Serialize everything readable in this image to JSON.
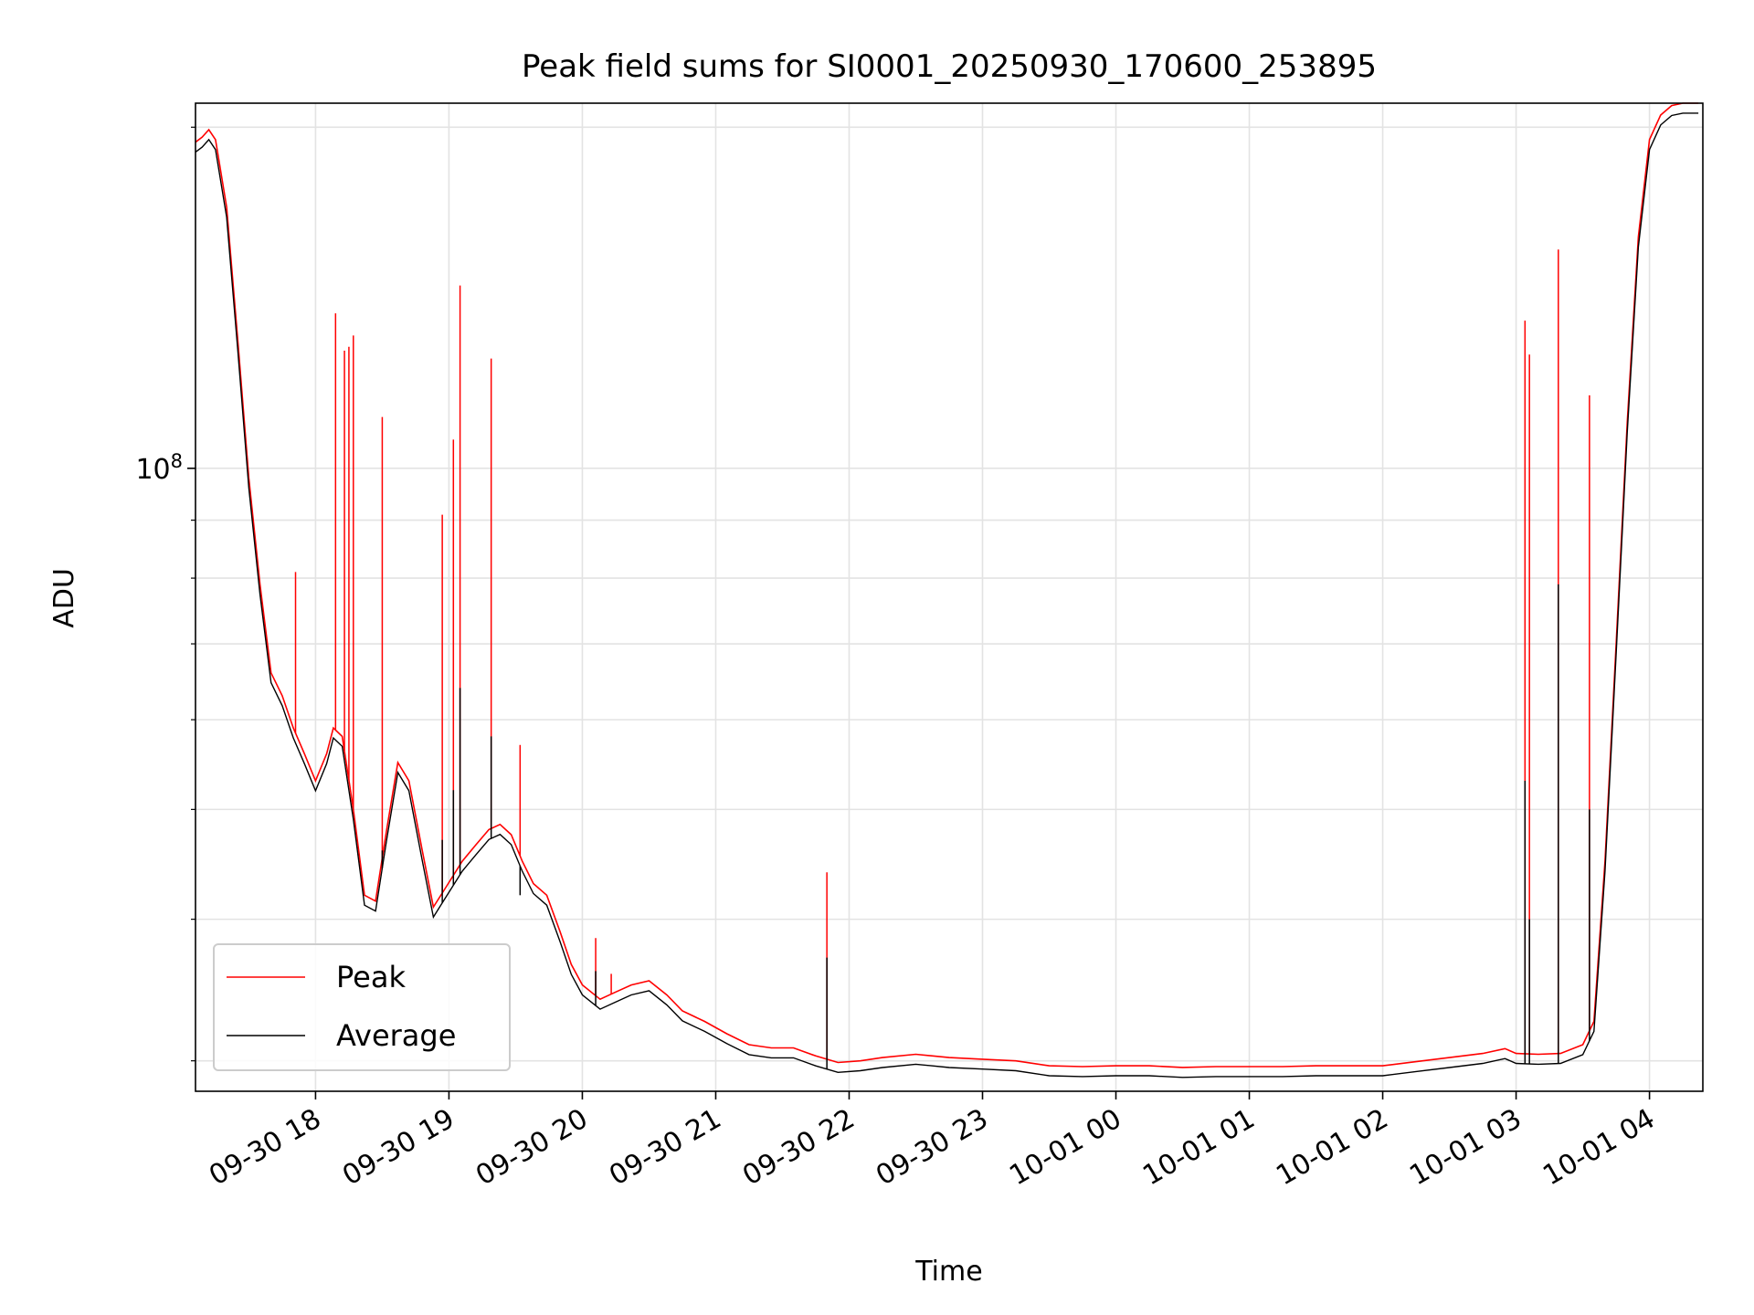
{
  "chart_data": {
    "type": "line",
    "title": "Peak field sums for SI0001_20250930_170600_253895",
    "xlabel": "Time",
    "ylabel": "ADU",
    "yscale": "log",
    "x_range": [
      "2025-09-30 17:06",
      "2025-10-01 04:24"
    ],
    "ylim": [
      28200000,
      210000000
    ],
    "x_tick_labels": [
      "09-30 18",
      "09-30 19",
      "09-30 20",
      "09-30 21",
      "09-30 22",
      "09-30 23",
      "10-01 00",
      "10-01 01",
      "10-01 02",
      "10-01 03",
      "10-01 04"
    ],
    "x_tick_values": [
      "2025-09-30 18:00",
      "2025-09-30 19:00",
      "2025-09-30 20:00",
      "2025-09-30 21:00",
      "2025-09-30 22:00",
      "2025-09-30 23:00",
      "2025-10-01 00:00",
      "2025-10-01 01:00",
      "2025-10-01 02:00",
      "2025-10-01 03:00",
      "2025-10-01 04:00"
    ],
    "y_tick_label": "10^8",
    "y_major_tick_value": 100000000,
    "y_minor_tick_values": [
      30000000,
      40000000,
      50000000,
      60000000,
      70000000,
      80000000,
      90000000,
      200000000
    ],
    "grid": true,
    "legend_position": "lower-left",
    "series": [
      {
        "name": "Peak",
        "color": "#ff0000",
        "baseline": [
          [
            "2025-09-30 17:06",
            194000000
          ],
          [
            "2025-09-30 17:09",
            196000000
          ],
          [
            "2025-09-30 17:12",
            199000000
          ],
          [
            "2025-09-30 17:15",
            195000000
          ],
          [
            "2025-09-30 17:20",
            170000000
          ],
          [
            "2025-09-30 17:25",
            130000000
          ],
          [
            "2025-09-30 17:30",
            98000000
          ],
          [
            "2025-09-30 17:35",
            79000000
          ],
          [
            "2025-09-30 17:40",
            66000000
          ],
          [
            "2025-09-30 17:45",
            63000000
          ],
          [
            "2025-09-30 17:50",
            59000000
          ],
          [
            "2025-09-30 17:55",
            56000000
          ],
          [
            "2025-09-30 18:00",
            53000000
          ],
          [
            "2025-09-30 18:05",
            56000000
          ],
          [
            "2025-09-30 18:08",
            59000000
          ],
          [
            "2025-09-30 18:12",
            58000000
          ],
          [
            "2025-09-30 18:17",
            50000000
          ],
          [
            "2025-09-30 18:22",
            42000000
          ],
          [
            "2025-09-30 18:27",
            41500000
          ],
          [
            "2025-09-30 18:32",
            48000000
          ],
          [
            "2025-09-30 18:37",
            55000000
          ],
          [
            "2025-09-30 18:42",
            53000000
          ],
          [
            "2025-09-30 18:48",
            46000000
          ],
          [
            "2025-09-30 18:53",
            41000000
          ],
          [
            "2025-09-30 18:58",
            42500000
          ],
          [
            "2025-09-30 19:06",
            45000000
          ],
          [
            "2025-09-30 19:12",
            46500000
          ],
          [
            "2025-09-30 19:18",
            48000000
          ],
          [
            "2025-09-30 19:23",
            48500000
          ],
          [
            "2025-09-30 19:28",
            47500000
          ],
          [
            "2025-09-30 19:33",
            45000000
          ],
          [
            "2025-09-30 19:38",
            43000000
          ],
          [
            "2025-09-30 19:44",
            42000000
          ],
          [
            "2025-09-30 19:50",
            39000000
          ],
          [
            "2025-09-30 19:55",
            36500000
          ],
          [
            "2025-09-30 20:00",
            35000000
          ],
          [
            "2025-09-30 20:08",
            34000000
          ],
          [
            "2025-09-30 20:15",
            34500000
          ],
          [
            "2025-09-30 20:22",
            35000000
          ],
          [
            "2025-09-30 20:30",
            35300000
          ],
          [
            "2025-09-30 20:38",
            34300000
          ],
          [
            "2025-09-30 20:45",
            33200000
          ],
          [
            "2025-09-30 20:55",
            32500000
          ],
          [
            "2025-09-30 21:05",
            31700000
          ],
          [
            "2025-09-30 21:15",
            31000000
          ],
          [
            "2025-09-30 21:25",
            30800000
          ],
          [
            "2025-09-30 21:35",
            30800000
          ],
          [
            "2025-09-30 21:45",
            30300000
          ],
          [
            "2025-09-30 21:55",
            29900000
          ],
          [
            "2025-09-30 22:05",
            30000000
          ],
          [
            "2025-09-30 22:15",
            30200000
          ],
          [
            "2025-09-30 22:30",
            30400000
          ],
          [
            "2025-09-30 22:45",
            30200000
          ],
          [
            "2025-09-30 23:00",
            30100000
          ],
          [
            "2025-09-30 23:15",
            30000000
          ],
          [
            "2025-09-30 23:30",
            29700000
          ],
          [
            "2025-09-30 23:45",
            29650000
          ],
          [
            "2025-10-01 00:00",
            29700000
          ],
          [
            "2025-10-01 00:15",
            29700000
          ],
          [
            "2025-10-01 00:30",
            29600000
          ],
          [
            "2025-10-01 00:45",
            29650000
          ],
          [
            "2025-10-01 01:00",
            29650000
          ],
          [
            "2025-10-01 01:15",
            29650000
          ],
          [
            "2025-10-01 01:30",
            29700000
          ],
          [
            "2025-10-01 01:45",
            29700000
          ],
          [
            "2025-10-01 02:00",
            29700000
          ],
          [
            "2025-10-01 02:15",
            29950000
          ],
          [
            "2025-10-01 02:30",
            30200000
          ],
          [
            "2025-10-01 02:45",
            30450000
          ],
          [
            "2025-10-01 02:55",
            30750000
          ],
          [
            "2025-10-01 03:00",
            30450000
          ],
          [
            "2025-10-01 03:10",
            30400000
          ],
          [
            "2025-10-01 03:20",
            30450000
          ],
          [
            "2025-10-01 03:30",
            31000000
          ],
          [
            "2025-10-01 03:35",
            32500000
          ],
          [
            "2025-10-01 03:40",
            45000000
          ],
          [
            "2025-10-01 03:45",
            70000000
          ],
          [
            "2025-10-01 03:50",
            110000000
          ],
          [
            "2025-10-01 03:55",
            160000000
          ],
          [
            "2025-10-01 04:00",
            195000000
          ],
          [
            "2025-10-01 04:05",
            205000000
          ],
          [
            "2025-10-01 04:10",
            209000000
          ],
          [
            "2025-10-01 04:15",
            210000000
          ],
          [
            "2025-10-01 04:22",
            210000000
          ]
        ],
        "spikes": [
          [
            "2025-09-30 17:51",
            81000000
          ],
          [
            "2025-09-30 18:09",
            137000000
          ],
          [
            "2025-09-30 18:13",
            127000000
          ],
          [
            "2025-09-30 18:15",
            128000000
          ],
          [
            "2025-09-30 18:17",
            131000000
          ],
          [
            "2025-09-30 18:30",
            111000000
          ],
          [
            "2025-09-30 18:57",
            91000000
          ],
          [
            "2025-09-30 19:02",
            106000000
          ],
          [
            "2025-09-30 19:05",
            145000000
          ],
          [
            "2025-09-30 19:19",
            125000000
          ],
          [
            "2025-09-30 19:32",
            57000000
          ],
          [
            "2025-09-30 20:06",
            38500000
          ],
          [
            "2025-09-30 20:13",
            35800000
          ],
          [
            "2025-09-30 21:50",
            44000000
          ],
          [
            "2025-10-01 03:04",
            135000000
          ],
          [
            "2025-10-01 03:06",
            126000000
          ],
          [
            "2025-10-01 03:19",
            156000000
          ],
          [
            "2025-10-01 03:33",
            116000000
          ]
        ]
      },
      {
        "name": "Average",
        "color": "#000000",
        "baseline_ratio": 0.98,
        "spikes": [
          [
            "2025-09-30 18:30",
            46000000
          ],
          [
            "2025-09-30 18:57",
            47000000
          ],
          [
            "2025-09-30 19:02",
            52000000
          ],
          [
            "2025-09-30 19:05",
            64000000
          ],
          [
            "2025-09-30 19:19",
            58000000
          ],
          [
            "2025-09-30 19:32",
            42000000
          ],
          [
            "2025-09-30 20:06",
            36000000
          ],
          [
            "2025-09-30 21:50",
            37000000
          ],
          [
            "2025-10-01 03:04",
            53000000
          ],
          [
            "2025-10-01 03:06",
            40000000
          ],
          [
            "2025-10-01 03:19",
            79000000
          ],
          [
            "2025-10-01 03:33",
            50000000
          ]
        ]
      }
    ]
  }
}
